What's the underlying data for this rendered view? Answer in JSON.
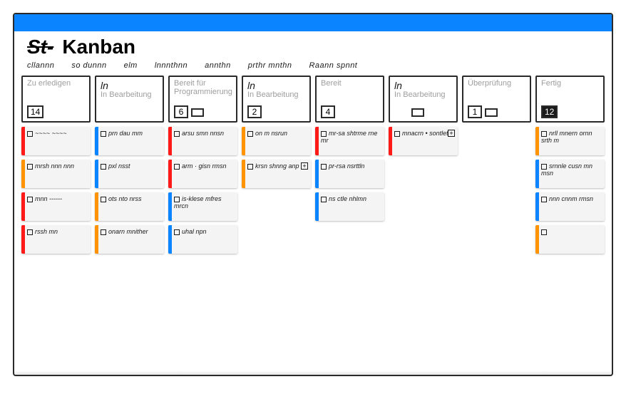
{
  "colors": {
    "accent": "#0a84ff",
    "red": "#ff1a1a",
    "orange": "#ff9400",
    "blue": "#0a84ff",
    "gray": "#bdbdbd",
    "card_bg": "#f4f4f4",
    "label_gray": "#9e9e9e"
  },
  "header": {
    "logo_scribble": "St-",
    "title": "Kanban"
  },
  "nav": [
    "cllannn",
    "so dunnn",
    "elm",
    "lnnnthnn",
    "annthn",
    "prthr mnthn",
    "Raann spnnt"
  ],
  "columns": [
    {
      "id": "col0",
      "label": "Zu erledigen",
      "scribble": "",
      "wip": "14",
      "wip_style": "light",
      "mini_icon": false,
      "cards": [
        {
          "stripe": "red",
          "text": "~~~~ ~~~~"
        },
        {
          "stripe": "orange",
          "text": "mrsh nnn nnn"
        },
        {
          "stripe": "red",
          "text": "mnn ------"
        },
        {
          "stripe": "red",
          "text": "rssh mn"
        }
      ]
    },
    {
      "id": "col1",
      "label": "In Bearbeitung",
      "scribble": "ln",
      "wip": "",
      "wip_style": "none",
      "mini_icon": false,
      "cards": [
        {
          "stripe": "blue",
          "text": "prn dau mm"
        },
        {
          "stripe": "blue",
          "text": "pxl nsst"
        },
        {
          "stripe": "orange",
          "text": "ots nto nrss"
        },
        {
          "stripe": "orange",
          "text": "onarn mnither"
        }
      ]
    },
    {
      "id": "col2",
      "label": "Bereit für Programmierung",
      "scribble": "",
      "wip": "6",
      "wip_style": "light",
      "mini_icon": true,
      "cards": [
        {
          "stripe": "red",
          "text": "arsu smn nnsn"
        },
        {
          "stripe": "red",
          "text": "arm · gisn rmsn"
        },
        {
          "stripe": "blue",
          "text": "is-klese mfres mrcn"
        },
        {
          "stripe": "blue",
          "text": "uhal npn"
        }
      ]
    },
    {
      "id": "col3",
      "label": "In Bearbeitung",
      "scribble": "ln",
      "wip": "2",
      "wip_style": "light",
      "mini_icon": false,
      "cards": [
        {
          "stripe": "orange",
          "text": "on m nsrun"
        },
        {
          "stripe": "orange",
          "text": "krsn shnng anp",
          "plus": true
        }
      ]
    },
    {
      "id": "col4",
      "label": "Bereit",
      "scribble": "",
      "wip": "4",
      "wip_style": "light",
      "mini_icon": false,
      "cards": [
        {
          "stripe": "red",
          "text": "mr-sa shtrme rne mr"
        },
        {
          "stripe": "blue",
          "text": "pr-rsa nsrttln"
        },
        {
          "stripe": "blue",
          "text": "ns ctle nhlmn"
        }
      ]
    },
    {
      "id": "col5",
      "label": "In Bearbeitung",
      "scribble": "ln",
      "wip": "",
      "wip_style": "none",
      "mini_icon": true,
      "cards": [
        {
          "stripe": "red",
          "text": "mnacrn • sontlet",
          "plus": true
        }
      ]
    },
    {
      "id": "col6",
      "label": "Überprüfung",
      "scribble": "",
      "wip": "1",
      "wip_style": "light",
      "mini_icon": true,
      "cards": []
    },
    {
      "id": "col7",
      "label": "Fertig",
      "scribble": "",
      "wip": "12",
      "wip_style": "dark",
      "mini_icon": false,
      "cards": [
        {
          "stripe": "orange",
          "text": "nrll mnern ornn srth m"
        },
        {
          "stripe": "blue",
          "text": "srnnle cusn mn msn"
        },
        {
          "stripe": "blue",
          "text": "nnn cnnm rmsn"
        },
        {
          "stripe": "orange",
          "text": ""
        }
      ]
    }
  ]
}
